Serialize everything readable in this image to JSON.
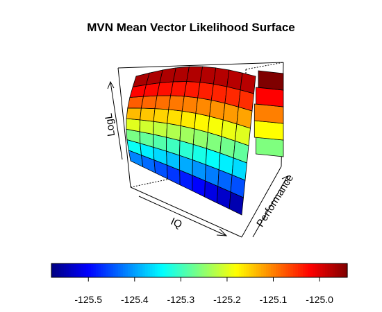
{
  "chart_data": {
    "type": "surface",
    "title": "MVN Mean Vector Likelihood Surface",
    "xlabel": "IQ",
    "ylabel": "Performance",
    "zlabel": "LogL",
    "zlim": [
      -125.58,
      -124.94
    ],
    "colorbar": {
      "palette": [
        "#00007F",
        "#0000FF",
        "#007FFF",
        "#00FFFF",
        "#7FFF7F",
        "#FFFF00",
        "#FF7F00",
        "#FF0000",
        "#7F0000"
      ],
      "ticks": [
        -125.5,
        -125.4,
        -125.3,
        -125.2,
        -125.1,
        -125.0
      ],
      "tick_labels": [
        "-125.5",
        "-125.4",
        "-125.3",
        "-125.2",
        "-125.1",
        "-125.0"
      ],
      "placement": "bottom"
    }
  }
}
